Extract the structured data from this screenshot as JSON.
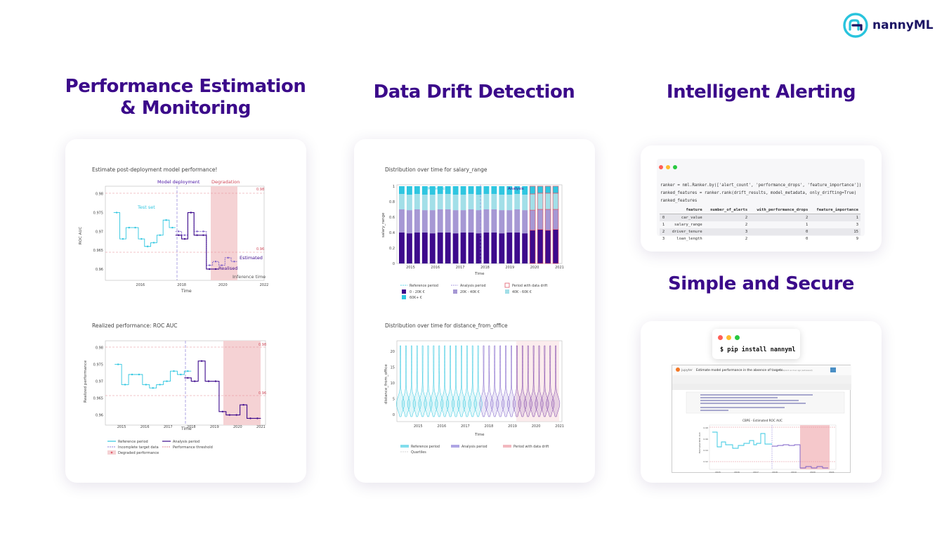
{
  "brand": {
    "name": "nannyML"
  },
  "headings": {
    "performance": "Performance Estimation\n& Monitoring",
    "drift": "Data Drift Detection",
    "alerting": "Intelligent Alerting",
    "secure": "Simple and Secure"
  },
  "colors": {
    "heading": "#3b0a8a",
    "brand": "#1b1464",
    "reference": "#2fc6e0",
    "analysis": "#3d0a8c",
    "degradation": "#f2c5c8",
    "threshold": "#e05a6a"
  },
  "card_performance": {
    "chart1": {
      "title": "Estimate post-deployment model performance!",
      "ylabel": "ROC AUC",
      "xlabel": "Time",
      "yticks": [
        "0.98",
        "0.975",
        "0.97",
        "0.965",
        "0.96"
      ],
      "xticks": [
        "2016",
        "2018",
        "2020",
        "2022"
      ],
      "threshold_upper": "0.98",
      "threshold_lower": "0.96",
      "annotations": {
        "deployment": "Model deployment",
        "degradation": "Degradation",
        "test_set": "Test set",
        "estimated": "Estimated",
        "realised": "Realised",
        "inference": "Inference time"
      }
    },
    "chart2": {
      "title": "Realized performance: ROC AUC",
      "ylabel": "Realized performance",
      "xlabel": "Time",
      "yticks": [
        "0.98",
        "0.975",
        "0.97",
        "0.965",
        "0.96"
      ],
      "xticks": [
        "2015",
        "2016",
        "2017",
        "2018",
        "2019",
        "2020",
        "2021"
      ],
      "threshold_upper": "0.98",
      "threshold_lower": "0.96",
      "legend": [
        "Reference period",
        "Analysis period",
        "Incomplete target data",
        "Performance threshold",
        "Degraded performance"
      ]
    }
  },
  "card_drift": {
    "chart1": {
      "title": "Distribution over time for salary_range",
      "ylabel": "salary_range",
      "xlabel": "Time",
      "yticks": [
        "1",
        "0.8",
        "0.6",
        "0.4",
        "0.2",
        "0"
      ],
      "xticks": [
        "2015",
        "2016",
        "2017",
        "2018",
        "2019",
        "2020",
        "2021"
      ],
      "period_labels": {
        "reference": "Reference",
        "analysis": "Analysis"
      },
      "legend": [
        "Reference period",
        "Analysis period",
        "Period with data drift",
        "0 - 20K €",
        "20K - 40K €",
        "40K - 60K €",
        "60K+ €"
      ]
    },
    "chart2": {
      "title": "Distribution over time for distance_from_office",
      "ylabel": "distance_from_office",
      "xlabel": "Time",
      "yticks": [
        "20",
        "15",
        "10",
        "5",
        "0"
      ],
      "xticks": [
        "2015",
        "2016",
        "2017",
        "2018",
        "2019",
        "2020",
        "2021"
      ],
      "legend": [
        "Reference period",
        "Analysis period",
        "Period with data drift",
        "Quartiles"
      ]
    }
  },
  "card_alerting": {
    "code": [
      "ranker = nml.Ranker.by(['alert_count', 'performance_drops', 'feature_importance'])",
      "ranked_features = ranker.rank(drift_results, model_metadata, only_drifting=True)",
      "ranked_features"
    ],
    "table": {
      "columns": [
        "",
        "feature",
        "number_of_alerts",
        "with_performance_drops",
        "feature_importance"
      ],
      "rows": [
        [
          "0",
          "car_value",
          "2",
          "2",
          "1"
        ],
        [
          "1",
          "salary_range",
          "2",
          "1",
          "3"
        ],
        [
          "2",
          "driver_tenure",
          "3",
          "0",
          "15"
        ],
        [
          "3",
          "loan_length",
          "2",
          "0",
          "9"
        ]
      ]
    }
  },
  "card_secure": {
    "terminal_command": "$ pip install nannyml",
    "notebook": {
      "brand": "jupyter",
      "title": "Estimate model performance in the absence of targets",
      "subtitle": "Last Checkpoint: an hour ago (autosaved)",
      "chart_title": "CBPE - Estimated ROC AUC",
      "ylabel": "Estimated ROC AUC",
      "yticks": [
        "0.98",
        "0.96",
        "0.94",
        "0.92"
      ],
      "xticks": [
        "2015",
        "2016",
        "2017",
        "2018",
        "2019",
        "2020",
        "2021"
      ]
    }
  },
  "chart_data": [
    {
      "type": "line",
      "title": "Estimate post-deployment model performance!",
      "ylabel": "ROC AUC",
      "xlabel": "Time",
      "ylim": [
        0.957,
        0.982
      ],
      "series": [
        {
          "name": "Test set",
          "x": [
            2014.7,
            2015.0,
            2015.3,
            2015.6,
            2015.9,
            2016.2,
            2016.5,
            2016.8,
            2017.1,
            2017.4
          ],
          "values": [
            0.975,
            0.968,
            0.971,
            0.971,
            0.968,
            0.966,
            0.967,
            0.969,
            0.973,
            0.971
          ]
        },
        {
          "name": "Estimated",
          "x": [
            2017.7,
            2018.0,
            2018.3,
            2018.6,
            2018.9,
            2019.2,
            2019.5,
            2019.8,
            2020.1,
            2020.4
          ],
          "values": [
            0.97,
            0.969,
            0.975,
            0.97,
            0.97,
            0.961,
            0.962,
            0.961,
            0.963,
            0.962
          ]
        },
        {
          "name": "Realised",
          "x": [
            2017.7,
            2018.0,
            2018.3,
            2018.6,
            2018.9,
            2019.2,
            2019.5
          ],
          "values": [
            0.969,
            0.968,
            0.975,
            0.969,
            0.969,
            0.96,
            0.96
          ]
        }
      ]
    },
    {
      "type": "line",
      "title": "Realized performance: ROC AUC",
      "ylabel": "Realized performance",
      "xlabel": "Time",
      "ylim": [
        0.957,
        0.982
      ],
      "series": [
        {
          "name": "Reference period",
          "x": [
            2014.7,
            2015.0,
            2015.3,
            2015.6,
            2015.9,
            2016.2,
            2016.5,
            2016.8,
            2017.1,
            2017.4,
            2017.7
          ],
          "values": [
            0.975,
            0.969,
            0.972,
            0.972,
            0.969,
            0.968,
            0.969,
            0.97,
            0.973,
            0.972,
            0.973
          ]
        },
        {
          "name": "Analysis period",
          "x": [
            2017.7,
            2018.0,
            2018.3,
            2018.6,
            2018.9,
            2019.2,
            2019.5,
            2019.8,
            2020.1,
            2020.4,
            2020.7
          ],
          "values": [
            0.971,
            0.97,
            0.976,
            0.97,
            0.97,
            0.961,
            0.96,
            0.96,
            0.963,
            0.959,
            0.959
          ]
        }
      ]
    },
    {
      "type": "bar",
      "title": "Distribution over time for salary_range",
      "ylabel": "salary_range",
      "xlabel": "Time",
      "ylim": [
        0,
        1
      ],
      "categories": [
        "2014-07",
        "2014-10",
        "2015-01",
        "2015-04",
        "2015-07",
        "2015-10",
        "2016-01",
        "2016-04",
        "2016-07",
        "2016-10",
        "2017-01",
        "2017-04",
        "2017-07",
        "2017-10",
        "2018-01",
        "2018-04",
        "2018-07",
        "2018-10",
        "2019-01",
        "2019-04",
        "2019-07"
      ],
      "series": [
        {
          "name": "0 - 20K €",
          "values": [
            0.4,
            0.39,
            0.4,
            0.4,
            0.39,
            0.4,
            0.4,
            0.39,
            0.4,
            0.4,
            0.39,
            0.4,
            0.4,
            0.39,
            0.4,
            0.4,
            0.39,
            0.43,
            0.44,
            0.43,
            0.44
          ]
        },
        {
          "name": "20K - 40K €",
          "values": [
            0.3,
            0.3,
            0.3,
            0.29,
            0.3,
            0.3,
            0.3,
            0.3,
            0.29,
            0.3,
            0.3,
            0.3,
            0.3,
            0.3,
            0.29,
            0.3,
            0.3,
            0.26,
            0.26,
            0.27,
            0.26
          ]
        },
        {
          "name": "40K - 60K €",
          "values": [
            0.2,
            0.2,
            0.2,
            0.2,
            0.2,
            0.2,
            0.2,
            0.2,
            0.2,
            0.2,
            0.2,
            0.2,
            0.2,
            0.2,
            0.2,
            0.2,
            0.2,
            0.21,
            0.21,
            0.21,
            0.21
          ]
        },
        {
          "name": "60K+ €",
          "values": [
            0.1,
            0.11,
            0.1,
            0.11,
            0.11,
            0.1,
            0.1,
            0.11,
            0.11,
            0.1,
            0.11,
            0.1,
            0.1,
            0.11,
            0.11,
            0.1,
            0.11,
            0.1,
            0.09,
            0.09,
            0.09
          ]
        }
      ]
    }
  ]
}
